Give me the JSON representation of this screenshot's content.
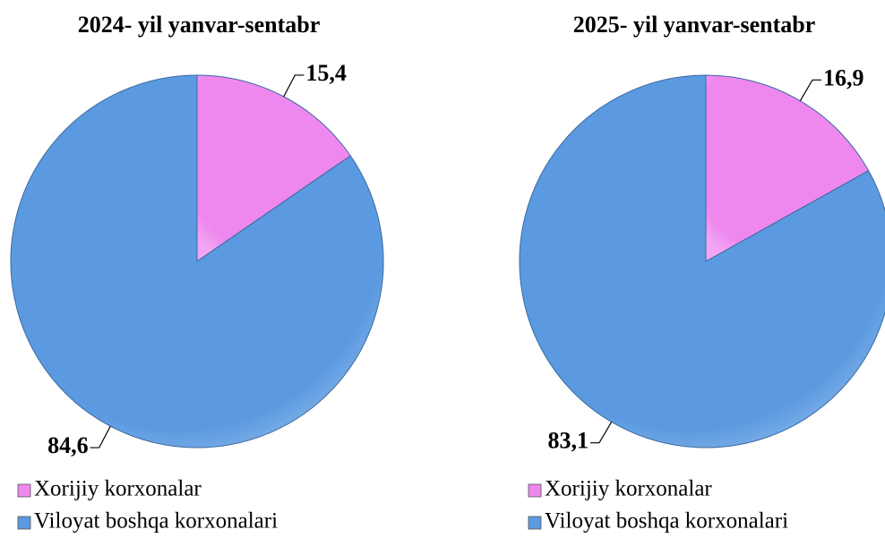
{
  "chart_data": [
    {
      "type": "pie",
      "title": "2024- yil yanvar-sentabr",
      "categories": [
        "Xorijiy korxonalar",
        "Viloyat boshqa korxonalari"
      ],
      "values": [
        15.4,
        84.6
      ],
      "value_labels": [
        "15,4",
        "84,6"
      ],
      "colors": [
        "#ee88ee",
        "#5b9ae0"
      ]
    },
    {
      "type": "pie",
      "title": "2025- yil yanvar-sentabr",
      "categories": [
        "Xorijiy korxonalar",
        "Viloyat boshqa korxonalari"
      ],
      "values": [
        16.9,
        83.1
      ],
      "value_labels": [
        "16,9",
        "83,1"
      ],
      "colors": [
        "#ee88ee",
        "#5b9ae0"
      ]
    }
  ]
}
